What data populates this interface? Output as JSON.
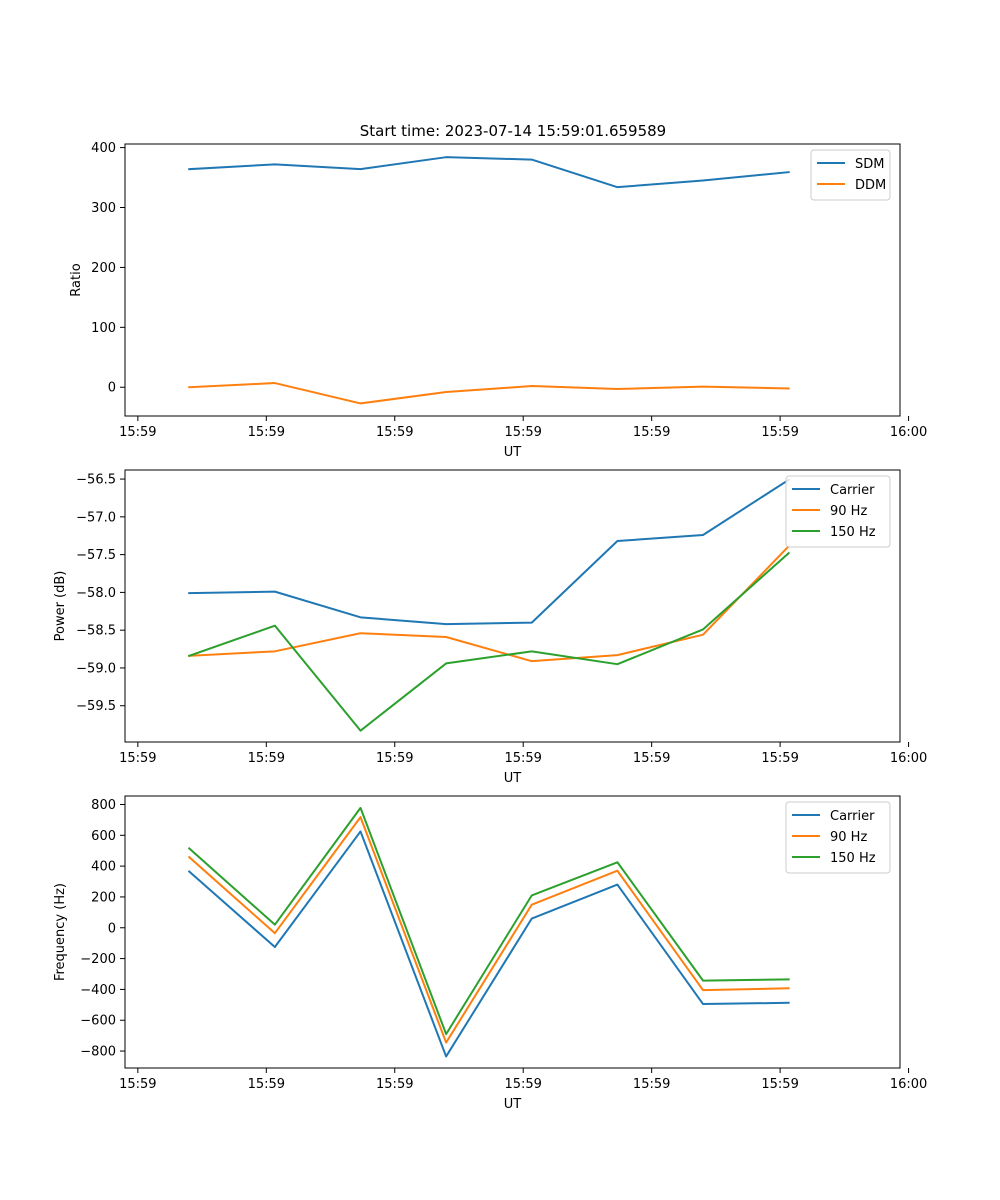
{
  "figure": {
    "title": "Start time: 2023-07-14 15:59:01.659589"
  },
  "chart_data": [
    {
      "type": "line",
      "x": [
        1,
        2,
        3,
        4,
        5,
        6,
        7,
        8
      ],
      "xlim": [
        0.25,
        9.3
      ],
      "xtick_positions": [
        0.4,
        1.9,
        3.4,
        4.9,
        6.4,
        7.9,
        9.4
      ],
      "xtick_labels": [
        "15:59",
        "15:59",
        "15:59",
        "15:59",
        "15:59",
        "15:59",
        "16:00"
      ],
      "xlabel": "UT",
      "ylabel": "Ratio",
      "ylim": [
        -48,
        406
      ],
      "yticks": [
        0,
        100,
        200,
        300,
        400
      ],
      "ytick_labels": [
        "0",
        "100",
        "200",
        "300",
        "400"
      ],
      "legend_position": "top-right",
      "series": [
        {
          "name": "SDM",
          "color": "#1f77b4",
          "values": [
            364,
            372,
            364,
            384,
            380,
            334,
            345,
            359
          ]
        },
        {
          "name": "DDM",
          "color": "#ff7f0e",
          "values": [
            0,
            7,
            -27,
            -8,
            2,
            -3,
            1,
            -2
          ]
        }
      ]
    },
    {
      "type": "line",
      "x": [
        1,
        2,
        3,
        4,
        5,
        6,
        7,
        8
      ],
      "xlim": [
        0.25,
        9.3
      ],
      "xtick_positions": [
        0.4,
        1.9,
        3.4,
        4.9,
        6.4,
        7.9,
        9.4
      ],
      "xtick_labels": [
        "15:59",
        "15:59",
        "15:59",
        "15:59",
        "15:59",
        "15:59",
        "16:00"
      ],
      "xlabel": "UT",
      "ylabel": "Power (dB)",
      "ylim": [
        -59.98,
        -56.38
      ],
      "yticks": [
        -59.5,
        -59.0,
        -58.5,
        -58.0,
        -57.5,
        -57.0,
        -56.5
      ],
      "ytick_labels": [
        "−59.5",
        "−59.0",
        "−58.5",
        "−58.0",
        "−57.5",
        "−57.0",
        "−56.5"
      ],
      "legend_position": "top-right",
      "series": [
        {
          "name": "Carrier",
          "color": "#1f77b4",
          "values": [
            -58.01,
            -57.99,
            -58.33,
            -58.42,
            -58.4,
            -57.32,
            -57.24,
            -56.51
          ]
        },
        {
          "name": "90 Hz",
          "color": "#ff7f0e",
          "values": [
            -58.84,
            -58.78,
            -58.54,
            -58.59,
            -58.91,
            -58.83,
            -58.56,
            -57.39
          ]
        },
        {
          "name": "150 Hz",
          "color": "#2ca02c",
          "values": [
            -58.84,
            -58.44,
            -59.83,
            -58.94,
            -58.78,
            -58.95,
            -58.49,
            -57.48
          ]
        }
      ]
    },
    {
      "type": "line",
      "x": [
        1,
        2,
        3,
        4,
        5,
        6,
        7,
        8
      ],
      "xlim": [
        0.25,
        9.3
      ],
      "xtick_positions": [
        0.4,
        1.9,
        3.4,
        4.9,
        6.4,
        7.9,
        9.4
      ],
      "xtick_labels": [
        "15:59",
        "15:59",
        "15:59",
        "15:59",
        "15:59",
        "15:59",
        "16:00"
      ],
      "xlabel": "UT",
      "ylabel": "Frequency (Hz)",
      "ylim": [
        -910,
        855
      ],
      "yticks": [
        -800,
        -600,
        -400,
        -200,
        0,
        200,
        400,
        600,
        800
      ],
      "ytick_labels": [
        "−800",
        "−600",
        "−400",
        "−200",
        "0",
        "200",
        "400",
        "600",
        "800"
      ],
      "legend_position": "top-right",
      "series": [
        {
          "name": "Carrier",
          "color": "#1f77b4",
          "values": [
            365,
            -125,
            625,
            -835,
            60,
            280,
            -495,
            -487
          ]
        },
        {
          "name": "90 Hz",
          "color": "#ff7f0e",
          "values": [
            458,
            -35,
            718,
            -745,
            150,
            370,
            -405,
            -393
          ]
        },
        {
          "name": "150 Hz",
          "color": "#2ca02c",
          "values": [
            515,
            20,
            778,
            -690,
            210,
            425,
            -343,
            -335
          ]
        }
      ]
    }
  ]
}
